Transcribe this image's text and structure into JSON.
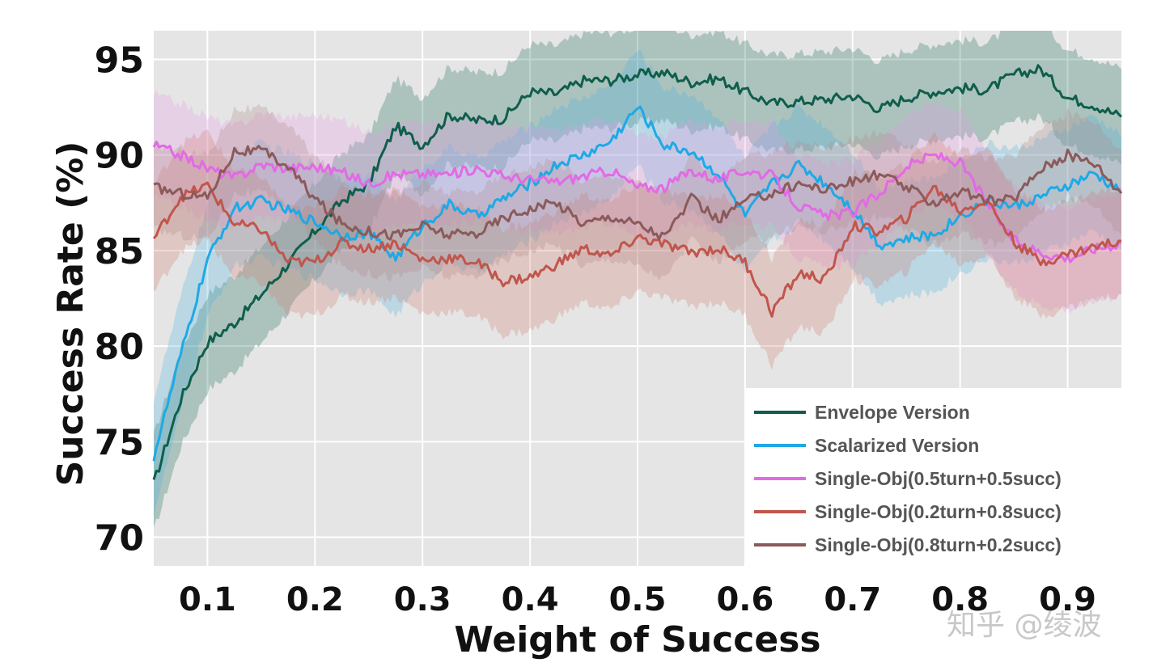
{
  "chart_data": {
    "type": "line",
    "xlabel": "Weight of Success",
    "ylabel": "Success Rate (%)",
    "xlim": [
      0.05,
      0.95
    ],
    "ylim": [
      68.5,
      96.5
    ],
    "x_ticks": [
      0.1,
      0.2,
      0.3,
      0.4,
      0.5,
      0.6,
      0.7,
      0.8,
      0.9
    ],
    "x_tick_labels": [
      "0.1",
      "0.2",
      "0.3",
      "0.4",
      "0.5",
      "0.6",
      "0.7",
      "0.8",
      "0.9"
    ],
    "y_ticks": [
      70,
      75,
      80,
      85,
      90,
      95
    ],
    "y_tick_labels": [
      "70",
      "75",
      "80",
      "85",
      "90",
      "95"
    ],
    "grid": true,
    "legend_position": "bottom-right",
    "x": [
      0.05,
      0.075,
      0.1,
      0.125,
      0.15,
      0.175,
      0.2,
      0.225,
      0.25,
      0.275,
      0.3,
      0.325,
      0.35,
      0.375,
      0.4,
      0.425,
      0.45,
      0.475,
      0.5,
      0.525,
      0.55,
      0.575,
      0.6,
      0.625,
      0.65,
      0.675,
      0.7,
      0.725,
      0.75,
      0.775,
      0.8,
      0.825,
      0.85,
      0.875,
      0.9,
      0.925,
      0.95
    ],
    "series": [
      {
        "name": "Envelope Version",
        "color": "#0f5e4b",
        "values": [
          72.8,
          77.2,
          80.2,
          81.2,
          82.7,
          84.3,
          86.0,
          87.6,
          88.5,
          91.5,
          90.5,
          92.1,
          91.8,
          91.9,
          93.3,
          93.2,
          93.9,
          93.9,
          94.2,
          94.3,
          93.8,
          94.0,
          93.3,
          92.7,
          92.8,
          92.9,
          93.1,
          92.4,
          93.0,
          93.3,
          93.5,
          93.4,
          94.2,
          94.5,
          93.0,
          92.6,
          92.0
        ],
        "band": 2.5,
        "band_color": "#1a6b55"
      },
      {
        "name": "Scalarized Version",
        "color": "#1ea9e6",
        "values": [
          74.2,
          79.5,
          84.5,
          87.2,
          87.6,
          87.1,
          86.5,
          85.8,
          85.9,
          84.6,
          86.3,
          87.4,
          86.8,
          87.7,
          88.5,
          89.5,
          90.0,
          90.7,
          92.5,
          90.5,
          90.2,
          89.0,
          86.8,
          88.5,
          89.5,
          88.5,
          87.2,
          85.3,
          85.6,
          85.8,
          86.8,
          87.6,
          87.3,
          87.8,
          88.4,
          89.0,
          88.0
        ],
        "band": 3.0,
        "band_color": "#4bb4e0"
      },
      {
        "name": "Single-Obj(0.5turn+0.5succ)",
        "color": "#e26ae6",
        "values": [
          90.5,
          90.0,
          89.3,
          88.8,
          89.5,
          89.3,
          89.4,
          89.1,
          88.5,
          89.0,
          89.0,
          89.0,
          89.3,
          88.9,
          88.7,
          88.6,
          88.9,
          89.2,
          88.3,
          88.3,
          89.2,
          88.7,
          89.2,
          88.9,
          87.3,
          86.8,
          87.0,
          88.0,
          89.4,
          90.0,
          89.6,
          87.5,
          85.5,
          84.9,
          84.6,
          85.1,
          85.4
        ],
        "band": 2.7,
        "band_color": "#e79ae6"
      },
      {
        "name": "Single-Obj(0.2turn+0.8succ)",
        "color": "#c0564c",
        "values": [
          85.6,
          87.8,
          88.4,
          86.4,
          86.1,
          84.4,
          84.4,
          85.4,
          85.1,
          85.4,
          84.5,
          84.6,
          84.4,
          83.4,
          83.6,
          84.3,
          85.1,
          84.7,
          85.7,
          85.3,
          84.9,
          85.1,
          84.4,
          81.8,
          83.8,
          83.5,
          86.3,
          86.0,
          86.7,
          88.3,
          87.1,
          87.6,
          85.5,
          84.4,
          84.8,
          85.2,
          85.5
        ],
        "band": 2.8,
        "band_color": "#cf7a6e"
      },
      {
        "name": "Single-Obj(0.8turn+0.2succ)",
        "color": "#8b5a5a",
        "values": [
          88.3,
          88.0,
          87.8,
          90.2,
          90.2,
          89.4,
          87.7,
          86.4,
          86.0,
          85.8,
          86.3,
          85.8,
          85.9,
          86.7,
          87.2,
          87.5,
          86.4,
          86.8,
          86.4,
          85.7,
          87.7,
          86.6,
          87.6,
          88.0,
          88.5,
          88.2,
          88.6,
          89.0,
          88.3,
          87.5,
          88.1,
          87.6,
          87.7,
          89.3,
          90.0,
          89.6,
          88.0
        ],
        "band": 2.2,
        "band_color": "#b08a88"
      }
    ]
  },
  "watermark": "知乎 @绫波"
}
